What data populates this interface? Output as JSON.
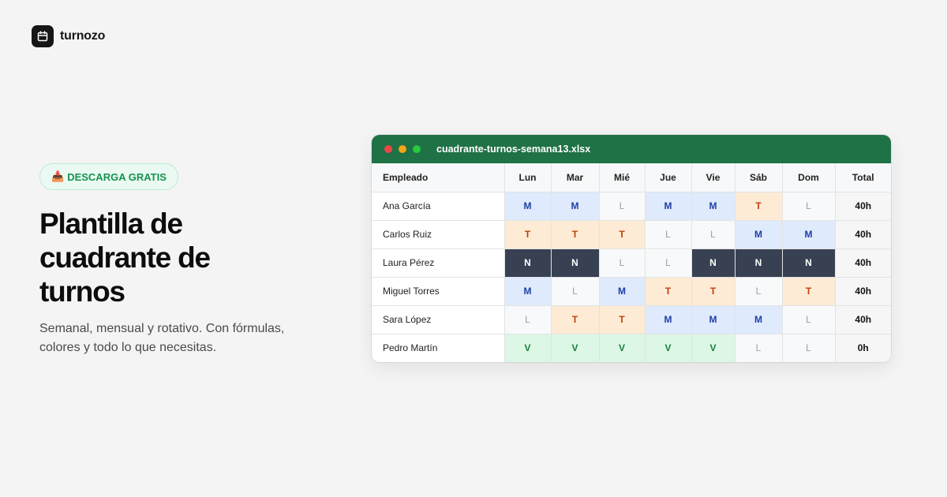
{
  "brand": {
    "name": "turnozo",
    "icon": "calendar-icon"
  },
  "hero": {
    "badge_icon": "📥",
    "badge_label": "DESCARGA GRATIS",
    "title": "Plantilla de cuadrante de turnos",
    "subtitle": "Semanal, mensual y rotativo. Con fórmulas, colores y todo lo que necesitas."
  },
  "spreadsheet": {
    "filename": "cuadrante-turnos-semana13.xlsx",
    "headers": [
      "Empleado",
      "Lun",
      "Mar",
      "Mié",
      "Jue",
      "Vie",
      "Sáb",
      "Dom",
      "Total"
    ],
    "rows": [
      {
        "name": "Ana García",
        "shifts": [
          "M",
          "M",
          "L",
          "M",
          "M",
          "T",
          "L"
        ],
        "total": "40h"
      },
      {
        "name": "Carlos Ruiz",
        "shifts": [
          "T",
          "T",
          "T",
          "L",
          "L",
          "M",
          "M"
        ],
        "total": "40h"
      },
      {
        "name": "Laura Pérez",
        "shifts": [
          "N",
          "N",
          "L",
          "L",
          "N",
          "N",
          "N"
        ],
        "total": "40h"
      },
      {
        "name": "Miguel Torres",
        "shifts": [
          "M",
          "L",
          "M",
          "T",
          "T",
          "L",
          "T"
        ],
        "total": "40h"
      },
      {
        "name": "Sara López",
        "shifts": [
          "L",
          "T",
          "T",
          "M",
          "M",
          "M",
          "L"
        ],
        "total": "40h"
      },
      {
        "name": "Pedro Martín",
        "shifts": [
          "V",
          "V",
          "V",
          "V",
          "V",
          "L",
          "L"
        ],
        "total": "0h"
      }
    ]
  },
  "colors": {
    "titlebar": "#1f7146",
    "badge_text": "#15924f",
    "shift_M": "#dfeafc",
    "shift_T": "#fdebd5",
    "shift_N": "#374152",
    "shift_L": "#f8f9fa",
    "shift_V": "#dcf7e5"
  }
}
